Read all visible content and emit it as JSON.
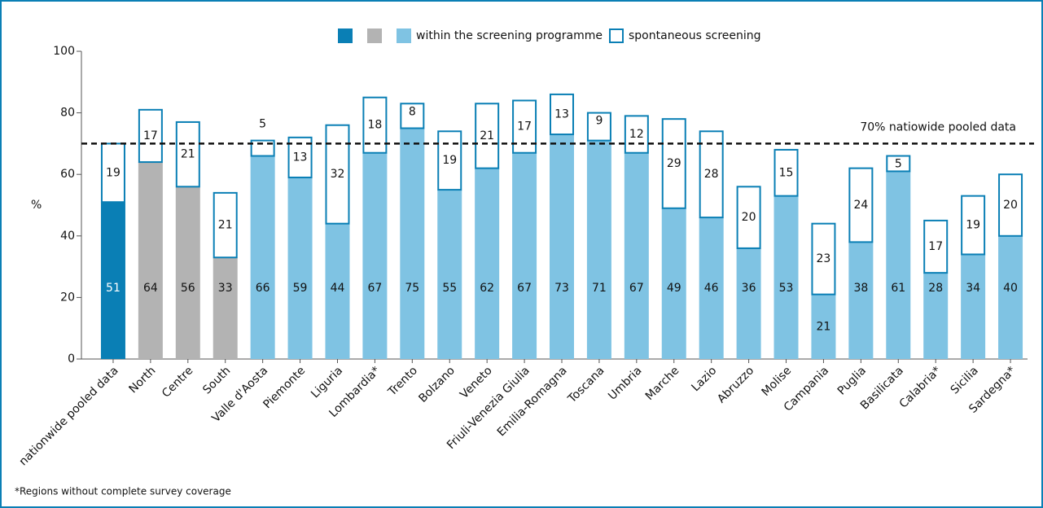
{
  "chart_data": {
    "type": "stacked_bar",
    "categories": [
      "nationwide pooled data",
      "North",
      "Centre",
      "South",
      "Valle d'Aosta",
      "Piemonte",
      "Liguria",
      "Lombardia*",
      "Trento",
      "Bolzano",
      "Veneto",
      "Friuli-Venezia Giulia",
      "Emilia-Romagna",
      "Toscana",
      "Umbria",
      "Marche",
      "Lazio",
      "Abruzzo",
      "Molise",
      "Campania",
      "Puglia",
      "Basilicata",
      "Calabria*",
      "Sicilia",
      "Sardegna*"
    ],
    "series": [
      {
        "name": "within the screening programme",
        "colors": [
          "#0a7fb5",
          "#b3b3b3",
          "#b3b3b3",
          "#b3b3b3",
          "#7fc3e3",
          "#7fc3e3",
          "#7fc3e3",
          "#7fc3e3",
          "#7fc3e3",
          "#7fc3e3",
          "#7fc3e3",
          "#7fc3e3",
          "#7fc3e3",
          "#7fc3e3",
          "#7fc3e3",
          "#7fc3e3",
          "#7fc3e3",
          "#7fc3e3",
          "#7fc3e3",
          "#7fc3e3",
          "#7fc3e3",
          "#7fc3e3",
          "#7fc3e3",
          "#7fc3e3",
          "#7fc3e3"
        ],
        "values": [
          51,
          64,
          56,
          33,
          66,
          59,
          44,
          67,
          75,
          55,
          62,
          67,
          73,
          71,
          67,
          49,
          46,
          36,
          53,
          21,
          38,
          61,
          28,
          34,
          40
        ]
      },
      {
        "name": "spontaneous screening",
        "color": "#ffffff",
        "edgecolor": "#0a7fb5",
        "values": [
          19,
          17,
          21,
          21,
          5,
          13,
          32,
          18,
          8,
          19,
          21,
          17,
          13,
          9,
          12,
          29,
          28,
          20,
          15,
          23,
          24,
          5,
          17,
          19,
          20
        ]
      }
    ],
    "ylabel": "%",
    "ylim": [
      0,
      100
    ],
    "yticks": [
      0,
      20,
      40,
      60,
      80,
      100
    ],
    "reference_line": {
      "value": 70,
      "label": "70% natiowide pooled data"
    },
    "footnote": "*Regions without complete survey coverage"
  }
}
